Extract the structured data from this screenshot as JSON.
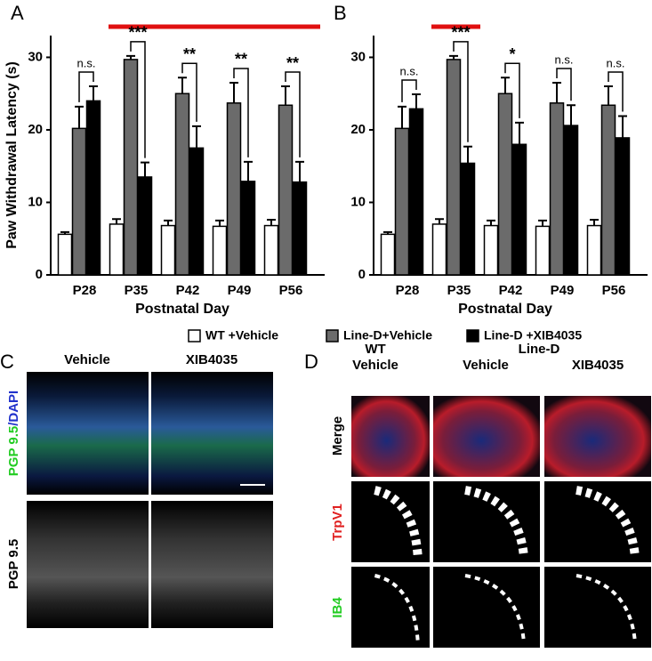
{
  "chart_data": [
    {
      "type": "bar",
      "panel_label": "A",
      "ylabel": "Paw Withdrawal Latency (s)",
      "xlabel": "Postnatal Day",
      "categories": [
        "P28",
        "P35",
        "P42",
        "P49",
        "P56"
      ],
      "series": [
        {
          "name": "WT +Vehicle",
          "color": "#ffffff",
          "values": [
            5.6,
            7,
            6.8,
            6.7,
            6.8
          ],
          "errors": [
            0.3,
            0.7,
            0.7,
            0.8,
            0.8
          ]
        },
        {
          "name": "Line-D+Vehicle",
          "color": "#6b6b6b",
          "values": [
            20.2,
            29.7,
            25,
            23.7,
            23.4
          ],
          "errors": [
            3,
            0.5,
            2.2,
            2.8,
            2.6
          ]
        },
        {
          "name": "Line-D +XIB4035",
          "color": "#000000",
          "values": [
            24,
            13.5,
            17.5,
            12.9,
            12.8
          ],
          "errors": [
            2,
            2,
            3,
            2.7,
            2.8
          ]
        }
      ],
      "significance": [
        "n.s.",
        "***",
        "**",
        "**",
        "**"
      ],
      "ylim": [
        0,
        33
      ],
      "yticks": [
        0,
        10,
        20,
        30
      ]
    },
    {
      "type": "bar",
      "panel_label": "B",
      "xlabel": "Postnatal Day",
      "categories": [
        "P28",
        "P35",
        "P42",
        "P49",
        "P56"
      ],
      "series": [
        {
          "color": "#ffffff",
          "values": [
            5.6,
            7,
            6.8,
            6.7,
            6.8
          ],
          "errors": [
            0.3,
            0.7,
            0.7,
            0.8,
            0.8
          ]
        },
        {
          "color": "#6b6b6b",
          "values": [
            20.2,
            29.7,
            25,
            23.7,
            23.4
          ],
          "errors": [
            3,
            0.5,
            2.2,
            2.8,
            2.6
          ]
        },
        {
          "color": "#000000",
          "values": [
            22.9,
            15.4,
            18,
            20.6,
            18.9
          ],
          "errors": [
            2,
            2.3,
            3,
            2.8,
            3
          ]
        }
      ],
      "significance": [
        "n.s.",
        "***",
        "*",
        "n.s.",
        "n.s."
      ],
      "ylim": [
        0,
        33
      ],
      "yticks": [
        0,
        10,
        20,
        30
      ]
    }
  ],
  "panel_c": {
    "label": "C",
    "columns": [
      "Vehicle",
      "XIB4035"
    ],
    "row1": [
      "PGP 9.5",
      "/DAPI"
    ],
    "row2": "PGP 9.5"
  },
  "panel_d": {
    "label": "D",
    "group": "Line-D",
    "columns": [
      [
        "WT",
        "Vehicle"
      ],
      [
        "Vehicle"
      ],
      [
        "XIB4035"
      ]
    ],
    "rows": [
      "Merge",
      "TrpV1",
      "IB4"
    ]
  }
}
